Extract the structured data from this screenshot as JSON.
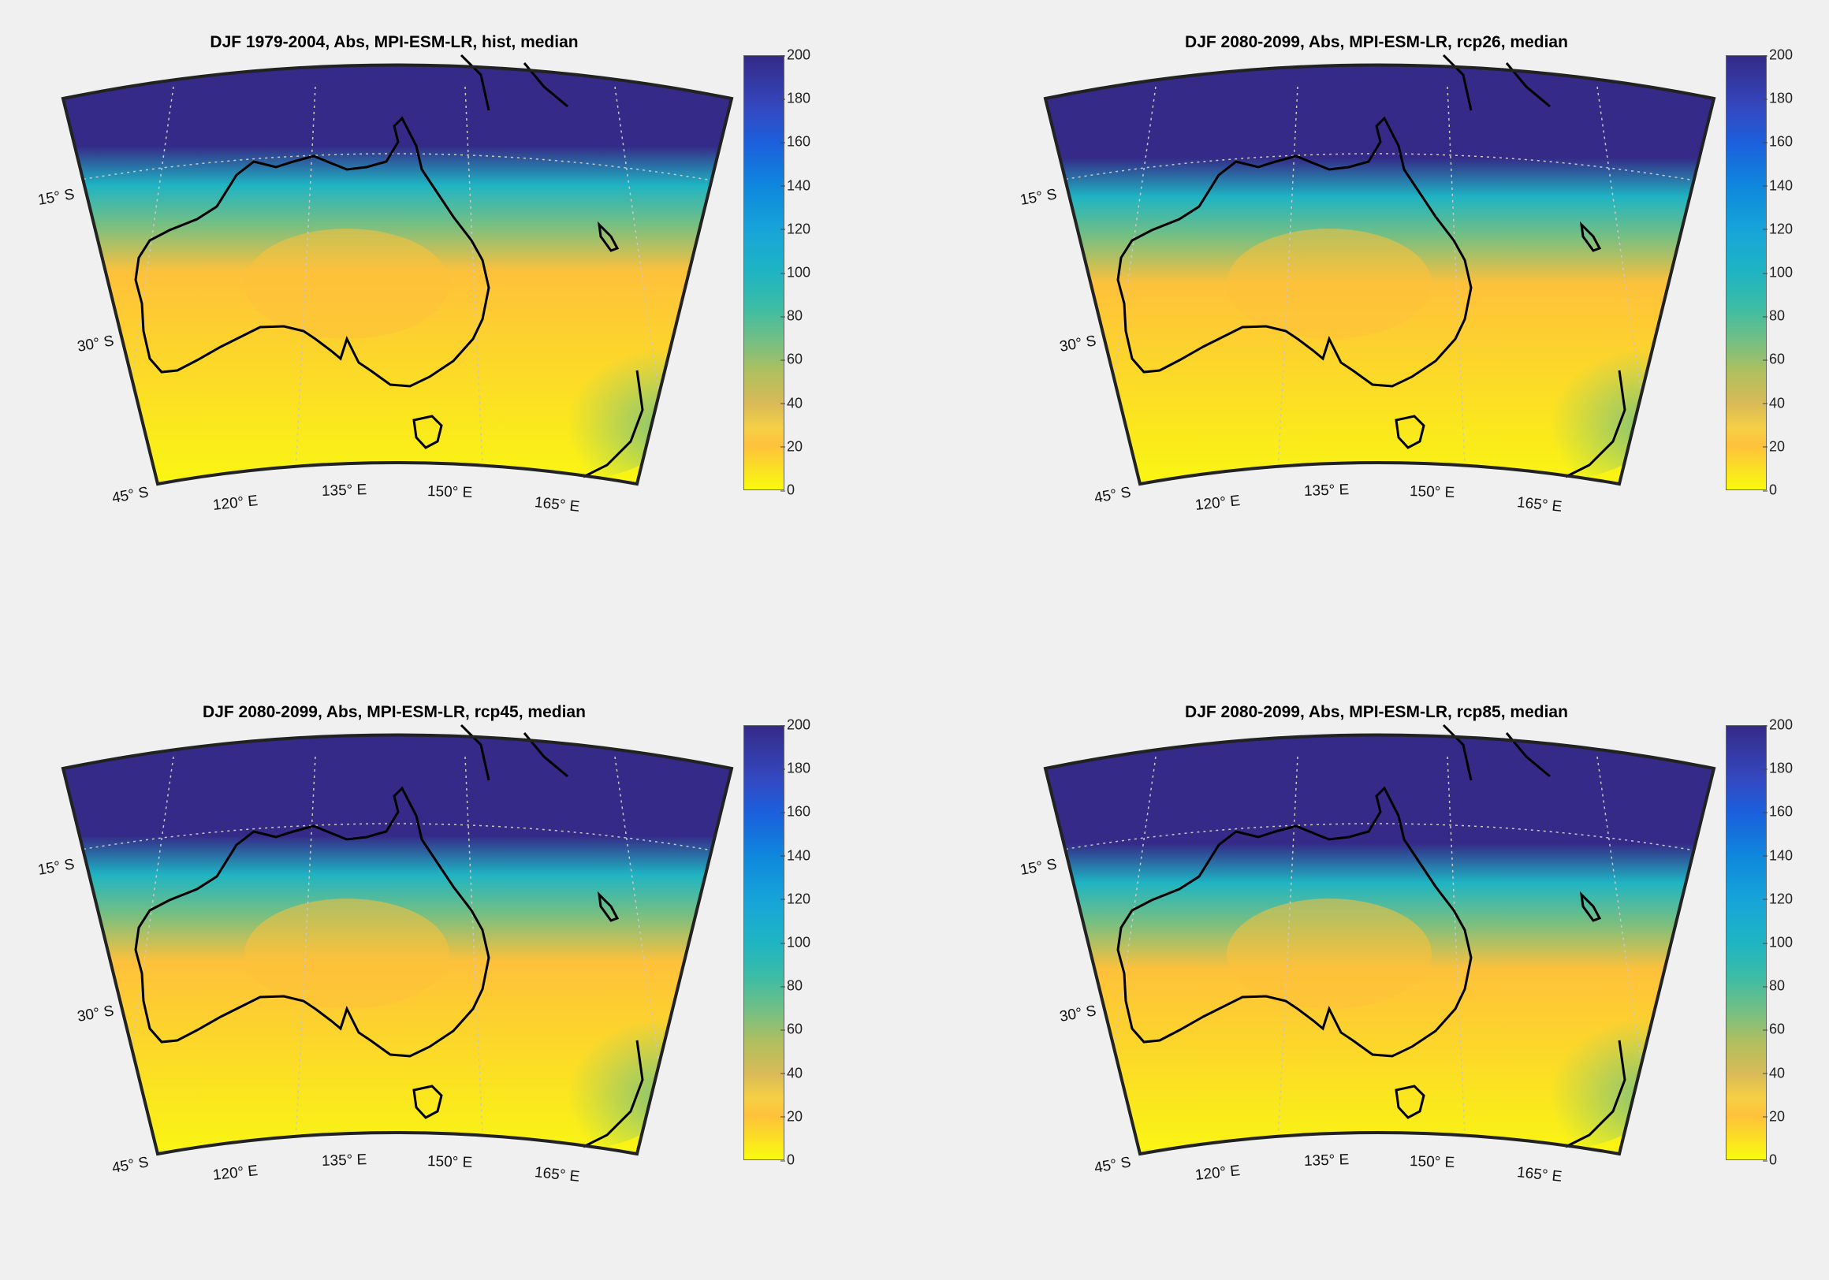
{
  "figure": {
    "panels": [
      {
        "title": "DJF 1979-2004, Abs, MPI-ESM-LR, hist, median",
        "lat_labels": [
          "15° S",
          "30° S",
          "45° S"
        ],
        "lon_labels": [
          "120° E",
          "135° E",
          "150° E",
          "165° E"
        ],
        "colorbar": {
          "ticks": [
            "0",
            "20",
            "40",
            "60",
            "80",
            "100",
            "120",
            "140",
            "160",
            "180",
            "200"
          ],
          "range": [
            0,
            200
          ]
        }
      },
      {
        "title": "DJF 2080-2099, Abs, MPI-ESM-LR, rcp26, median",
        "lat_labels": [
          "15° S",
          "30° S",
          "45° S"
        ],
        "lon_labels": [
          "120° E",
          "135° E",
          "150° E",
          "165° E"
        ],
        "colorbar": {
          "ticks": [
            "0",
            "20",
            "40",
            "60",
            "80",
            "100",
            "120",
            "140",
            "160",
            "180",
            "200"
          ],
          "range": [
            0,
            200
          ]
        }
      },
      {
        "title": "DJF 2080-2099, Abs, MPI-ESM-LR, rcp45, median",
        "lat_labels": [
          "15° S",
          "30° S",
          "45° S"
        ],
        "lon_labels": [
          "120° E",
          "135° E",
          "150° E",
          "165° E"
        ],
        "colorbar": {
          "ticks": [
            "0",
            "20",
            "40",
            "60",
            "80",
            "100",
            "120",
            "140",
            "160",
            "180",
            "200"
          ],
          "range": [
            0,
            200
          ]
        }
      },
      {
        "title": "DJF 2080-2099, Abs, MPI-ESM-LR, rcp85, median",
        "lat_labels": [
          "15° S",
          "30° S",
          "45° S"
        ],
        "lon_labels": [
          "120° E",
          "135° E",
          "150° E",
          "165° E"
        ],
        "colorbar": {
          "ticks": [
            "0",
            "20",
            "40",
            "60",
            "80",
            "100",
            "120",
            "140",
            "160",
            "180",
            "200"
          ],
          "range": [
            0,
            200
          ]
        }
      }
    ],
    "colormap": "parula",
    "colors": {
      "background": "#f0f0f0",
      "high": "#352a87",
      "mid": "#1fb4c3",
      "green": "#76bf82",
      "orange": "#fec13b",
      "low": "#f9fb0e",
      "coastline": "#000000",
      "grid": "#c8c8c8"
    }
  }
}
